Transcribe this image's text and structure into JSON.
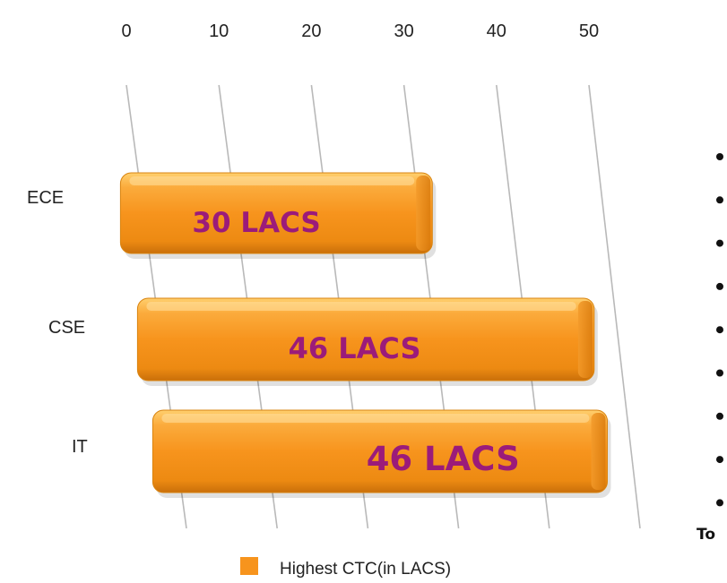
{
  "chart_data": {
    "type": "bar",
    "orientation": "horizontal",
    "categories": [
      "ECE",
      "CSE",
      "IT"
    ],
    "series": [
      {
        "name": "Highest CTC(in LACS)",
        "values": [
          30,
          46,
          46
        ],
        "color": "#f7941d"
      }
    ],
    "data_labels": [
      "30 LACS",
      "46 LACS",
      "46 LACS"
    ],
    "xlim": [
      0,
      50
    ],
    "x_ticks": [
      "0",
      "10",
      "20",
      "30",
      "40",
      "50"
    ],
    "tick_positions": [
      0,
      10,
      20,
      30,
      40,
      50
    ],
    "grid": true,
    "legend": "bottom",
    "label_color": "#9b1b7a"
  },
  "side_text": {
    "bullet_count": 9,
    "truncated_label": "To"
  }
}
